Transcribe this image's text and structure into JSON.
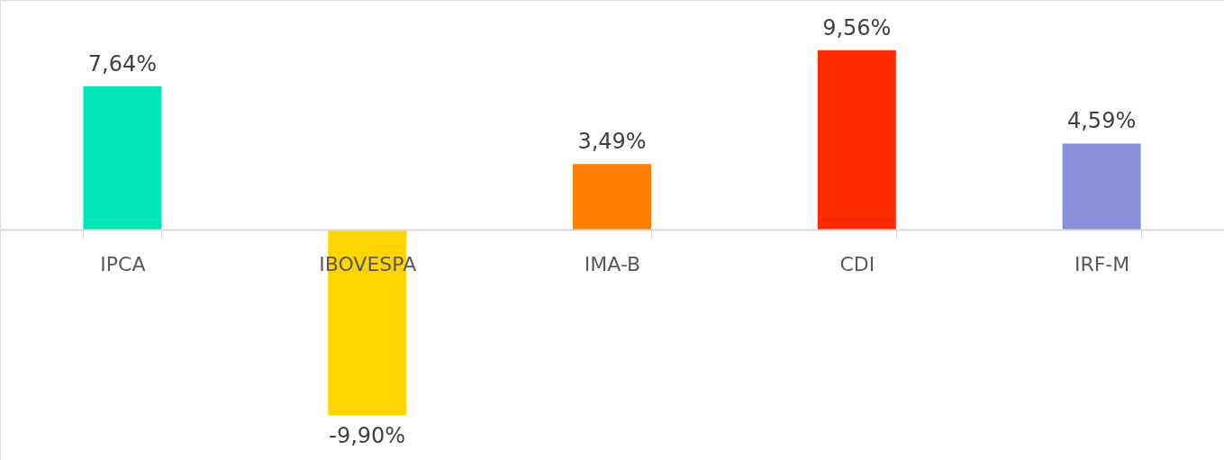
{
  "chart_data": {
    "type": "bar",
    "categories": [
      "IPCA",
      "IBOVESPA",
      "IMA-B",
      "CDI",
      "IRF-M"
    ],
    "values": [
      7.64,
      -9.9,
      3.49,
      9.56,
      4.59
    ],
    "colors": [
      "#00e5b8",
      "#ffd500",
      "#ff7f00",
      "#ff2a00",
      "#8a8fdc"
    ],
    "value_labels": [
      "7,64%",
      "-9,90%",
      "3,49%",
      "9,56%",
      "4,59%"
    ]
  }
}
